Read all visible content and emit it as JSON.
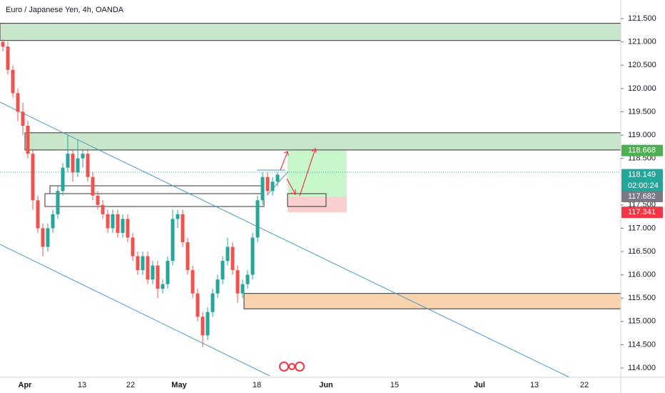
{
  "chart_data": {
    "type": "candlestick",
    "title": "Euro / Japanese Yen, 4h, OANDA",
    "ylim": [
      113.8,
      121.9
    ],
    "yticks": [
      {
        "value": 114.0,
        "label": "114.000"
      },
      {
        "value": 114.5,
        "label": "114.500"
      },
      {
        "value": 115.0,
        "label": "115.000"
      },
      {
        "value": 115.5,
        "label": "115.500"
      },
      {
        "value": 116.0,
        "label": "116.000"
      },
      {
        "value": 116.5,
        "label": "116.500"
      },
      {
        "value": 117.0,
        "label": "117.000"
      },
      {
        "value": 117.5,
        "label": "117.500"
      },
      {
        "value": 118.5,
        "label": "118.500"
      },
      {
        "value": 119.0,
        "label": "119.000"
      },
      {
        "value": 119.5,
        "label": "119.500"
      },
      {
        "value": 120.0,
        "label": "120.000"
      },
      {
        "value": 120.5,
        "label": "120.500"
      },
      {
        "value": 121.0,
        "label": "121.000"
      },
      {
        "value": 121.5,
        "label": "121.500"
      }
    ],
    "x_labels": [
      "Apr",
      "13",
      "22",
      "May",
      "18",
      "Jun",
      "15",
      "Jul",
      "13",
      "22"
    ],
    "up_color": "#26a69a",
    "down_color": "#ef5350",
    "candles": [
      [
        121.0,
        121.05,
        120.8,
        120.9
      ],
      [
        120.9,
        121.0,
        120.3,
        120.4
      ],
      [
        120.4,
        120.5,
        119.8,
        119.9
      ],
      [
        119.9,
        120.0,
        119.3,
        119.5
      ],
      [
        119.5,
        119.7,
        119.0,
        119.2
      ],
      [
        119.2,
        119.3,
        118.5,
        118.6
      ],
      [
        118.6,
        118.7,
        117.4,
        117.6
      ],
      [
        117.6,
        117.7,
        116.9,
        117.0
      ],
      [
        117.0,
        117.1,
        116.4,
        116.6
      ],
      [
        116.6,
        117.1,
        116.5,
        117.0
      ],
      [
        117.0,
        117.4,
        116.9,
        117.3
      ],
      [
        117.3,
        117.9,
        117.2,
        117.8
      ],
      [
        117.8,
        118.4,
        117.7,
        118.3
      ],
      [
        118.3,
        119.0,
        118.2,
        118.6
      ],
      [
        118.6,
        118.7,
        118.0,
        118.2
      ],
      [
        118.2,
        118.9,
        118.1,
        118.5
      ],
      [
        118.5,
        118.7,
        118.3,
        118.6
      ],
      [
        118.6,
        118.7,
        118.0,
        118.1
      ],
      [
        118.1,
        118.2,
        117.6,
        117.7
      ],
      [
        117.7,
        117.8,
        117.4,
        117.5
      ],
      [
        117.5,
        117.6,
        117.2,
        117.3
      ],
      [
        117.3,
        117.4,
        116.9,
        117.0
      ],
      [
        117.0,
        117.4,
        116.9,
        117.3
      ],
      [
        117.3,
        117.4,
        116.8,
        116.9
      ],
      [
        116.9,
        117.3,
        116.8,
        117.2
      ],
      [
        117.2,
        117.3,
        116.7,
        116.8
      ],
      [
        116.8,
        116.9,
        116.3,
        116.4
      ],
      [
        116.4,
        116.5,
        116.0,
        116.1
      ],
      [
        116.1,
        116.5,
        116.0,
        116.4
      ],
      [
        116.4,
        116.5,
        115.8,
        115.9
      ],
      [
        115.9,
        116.3,
        115.8,
        116.2
      ],
      [
        116.2,
        116.3,
        115.5,
        115.7
      ],
      [
        115.7,
        115.9,
        115.6,
        115.8
      ],
      [
        115.8,
        116.4,
        115.7,
        116.3
      ],
      [
        116.3,
        117.4,
        116.2,
        117.2
      ],
      [
        117.2,
        117.4,
        117.0,
        117.3
      ],
      [
        117.3,
        117.4,
        116.6,
        116.7
      ],
      [
        116.7,
        116.8,
        116.0,
        116.1
      ],
      [
        116.1,
        116.2,
        115.5,
        115.6
      ],
      [
        115.6,
        115.7,
        115.0,
        115.1
      ],
      [
        115.1,
        115.2,
        114.45,
        114.7
      ],
      [
        114.7,
        115.3,
        114.6,
        115.2
      ],
      [
        115.2,
        115.7,
        115.1,
        115.6
      ],
      [
        115.6,
        116.0,
        115.5,
        115.9
      ],
      [
        115.9,
        116.4,
        115.8,
        116.3
      ],
      [
        116.3,
        116.8,
        116.2,
        116.6
      ],
      [
        116.6,
        116.7,
        116.0,
        116.1
      ],
      [
        116.1,
        116.2,
        115.4,
        115.6
      ],
      [
        115.6,
        115.9,
        115.5,
        115.8
      ],
      [
        115.8,
        116.1,
        115.7,
        116.0
      ],
      [
        116.0,
        116.9,
        115.9,
        116.8
      ],
      [
        116.8,
        117.7,
        116.7,
        117.6
      ],
      [
        117.6,
        118.2,
        117.5,
        118.1
      ],
      [
        118.1,
        118.2,
        117.7,
        117.8
      ],
      [
        117.8,
        118.1,
        117.7,
        118.0
      ],
      [
        118.0,
        118.2,
        117.9,
        118.15
      ]
    ],
    "zones": [
      {
        "top": 121.4,
        "bottom": 121.03,
        "color": "#c8e6c9"
      },
      {
        "top": 119.05,
        "bottom": 118.68,
        "color": "#c8e6c9"
      },
      {
        "top": 115.6,
        "bottom": 115.27,
        "color": "#f9d3ad"
      },
      {
        "top": 118.668,
        "bottom": 117.682,
        "color": "#c9f7cc"
      },
      {
        "top": 117.682,
        "bottom": 117.341,
        "color": "#f9cfd0"
      }
    ],
    "price_tags": [
      {
        "value": 118.668,
        "label": "118.668",
        "color": "#4caf50"
      },
      {
        "value": 118.149,
        "label": "118.149",
        "color": "#26a69a"
      },
      {
        "value": 117.682,
        "label": "117.682",
        "color": "#787b86"
      },
      {
        "value": 117.341,
        "label": "117.341",
        "color": "#f23645"
      }
    ],
    "countdown": "02:00:24"
  }
}
